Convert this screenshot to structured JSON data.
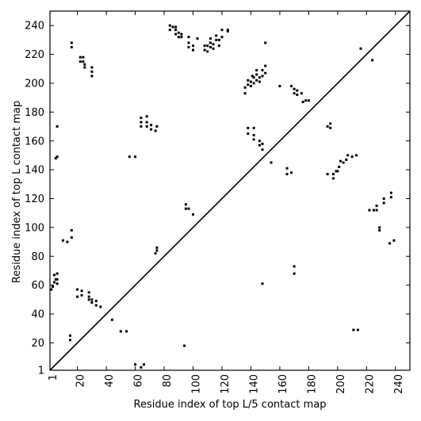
{
  "chart_data": {
    "type": "scatter",
    "title": "",
    "xlabel": "Residue index of top L/5 contact map",
    "ylabel": "Residue index of top L contact map",
    "xlim": [
      1,
      250
    ],
    "ylim": [
      1,
      250
    ],
    "xticks": [
      1,
      20,
      40,
      60,
      80,
      100,
      120,
      140,
      160,
      180,
      200,
      220,
      240
    ],
    "yticks": [
      1,
      20,
      40,
      60,
      80,
      100,
      120,
      140,
      160,
      180,
      200,
      220,
      240
    ],
    "grid": false,
    "legend": "none",
    "diagonal": {
      "from": [
        1,
        1
      ],
      "to": [
        250,
        250
      ]
    },
    "point_color": "#000000",
    "series": [
      {
        "values": [
          [
            2,
            57
          ],
          [
            3,
            59
          ],
          [
            4,
            62
          ],
          [
            5,
            64
          ],
          [
            6,
            61
          ],
          [
            6,
            64
          ],
          [
            4,
            67
          ],
          [
            6,
            68
          ],
          [
            5,
            148
          ],
          [
            6,
            149
          ],
          [
            6,
            170
          ],
          [
            10,
            91
          ],
          [
            13,
            90
          ],
          [
            16,
            93
          ],
          [
            16,
            98
          ],
          [
            16,
            225
          ],
          [
            16,
            228
          ],
          [
            15,
            22
          ],
          [
            15,
            25
          ],
          [
            20,
            52
          ],
          [
            20,
            57
          ],
          [
            23,
            53
          ],
          [
            23,
            56
          ],
          [
            22,
            215
          ],
          [
            22,
            218
          ],
          [
            24,
            215
          ],
          [
            24,
            218
          ],
          [
            25,
            211
          ],
          [
            25,
            213
          ],
          [
            28,
            50
          ],
          [
            28,
            52
          ],
          [
            28,
            55
          ],
          [
            30,
            48
          ],
          [
            30,
            50
          ],
          [
            30,
            205
          ],
          [
            30,
            208
          ],
          [
            30,
            211
          ],
          [
            33,
            46
          ],
          [
            33,
            49
          ],
          [
            36,
            45
          ],
          [
            44,
            36
          ],
          [
            50,
            28
          ],
          [
            54,
            28
          ],
          [
            56,
            149
          ],
          [
            60,
            149
          ],
          [
            60,
            5
          ],
          [
            64,
            3
          ],
          [
            66,
            5
          ],
          [
            64,
            170
          ],
          [
            64,
            173
          ],
          [
            64,
            176
          ],
          [
            68,
            170
          ],
          [
            68,
            173
          ],
          [
            68,
            177
          ],
          [
            71,
            168
          ],
          [
            71,
            171
          ],
          [
            74,
            167
          ],
          [
            75,
            170
          ],
          [
            74,
            82
          ],
          [
            75,
            84
          ],
          [
            75,
            86
          ],
          [
            84,
            237
          ],
          [
            84,
            240
          ],
          [
            86,
            239
          ],
          [
            88,
            234
          ],
          [
            88,
            237
          ],
          [
            88,
            239
          ],
          [
            90,
            232
          ],
          [
            90,
            235
          ],
          [
            92,
            232
          ],
          [
            92,
            234
          ],
          [
            95,
            113
          ],
          [
            95,
            116
          ],
          [
            97,
            113
          ],
          [
            100,
            109
          ],
          [
            94,
            18
          ],
          [
            97,
            225
          ],
          [
            97,
            228
          ],
          [
            97,
            232
          ],
          [
            100,
            223
          ],
          [
            100,
            226
          ],
          [
            103,
            231
          ],
          [
            108,
            223
          ],
          [
            108,
            226
          ],
          [
            110,
            222
          ],
          [
            110,
            226
          ],
          [
            112,
            225
          ],
          [
            112,
            228
          ],
          [
            112,
            231
          ],
          [
            114,
            224
          ],
          [
            114,
            227
          ],
          [
            116,
            230
          ],
          [
            116,
            233
          ],
          [
            118,
            226
          ],
          [
            118,
            230
          ],
          [
            120,
            232
          ],
          [
            120,
            237
          ],
          [
            124,
            236
          ],
          [
            124,
            237
          ],
          [
            136,
            193
          ],
          [
            136,
            197
          ],
          [
            138,
            199
          ],
          [
            138,
            202
          ],
          [
            138,
            165
          ],
          [
            138,
            169
          ],
          [
            140,
            198
          ],
          [
            140,
            201
          ],
          [
            141,
            205
          ],
          [
            142,
            200
          ],
          [
            142,
            204
          ],
          [
            142,
            161
          ],
          [
            142,
            164
          ],
          [
            142,
            169
          ],
          [
            144,
            202
          ],
          [
            144,
            206
          ],
          [
            144,
            209
          ],
          [
            146,
            201
          ],
          [
            146,
            204
          ],
          [
            146,
            157
          ],
          [
            146,
            160
          ],
          [
            148,
            205
          ],
          [
            148,
            209
          ],
          [
            148,
            154
          ],
          [
            148,
            158
          ],
          [
            150,
            207
          ],
          [
            150,
            212
          ],
          [
            150,
            228
          ],
          [
            154,
            145
          ],
          [
            160,
            198
          ],
          [
            165,
            137
          ],
          [
            165,
            141
          ],
          [
            168,
            198
          ],
          [
            170,
            68
          ],
          [
            170,
            73
          ],
          [
            170,
            193
          ],
          [
            170,
            196
          ],
          [
            172,
            192
          ],
          [
            172,
            195
          ],
          [
            175,
            193
          ],
          [
            176,
            187
          ],
          [
            178,
            188
          ],
          [
            180,
            188
          ],
          [
            193,
            137
          ],
          [
            193,
            170
          ],
          [
            195,
            169
          ],
          [
            195,
            172
          ],
          [
            197,
            134
          ],
          [
            197,
            137
          ],
          [
            199,
            139
          ],
          [
            200,
            139
          ],
          [
            201,
            142
          ],
          [
            202,
            146
          ],
          [
            204,
            145
          ],
          [
            206,
            147
          ],
          [
            207,
            150
          ],
          [
            210,
            149
          ],
          [
            211,
            29
          ],
          [
            214,
            29
          ],
          [
            213,
            150
          ],
          [
            216,
            224
          ],
          [
            222,
            112
          ],
          [
            224,
            216
          ],
          [
            225,
            112
          ],
          [
            227,
            112
          ],
          [
            227,
            115
          ],
          [
            229,
            98
          ],
          [
            229,
            100
          ],
          [
            232,
            117
          ],
          [
            232,
            120
          ],
          [
            236,
            89
          ],
          [
            237,
            121
          ],
          [
            237,
            124
          ],
          [
            239,
            91
          ],
          [
            148,
            61
          ],
          [
            168,
            138
          ]
        ]
      }
    ]
  }
}
